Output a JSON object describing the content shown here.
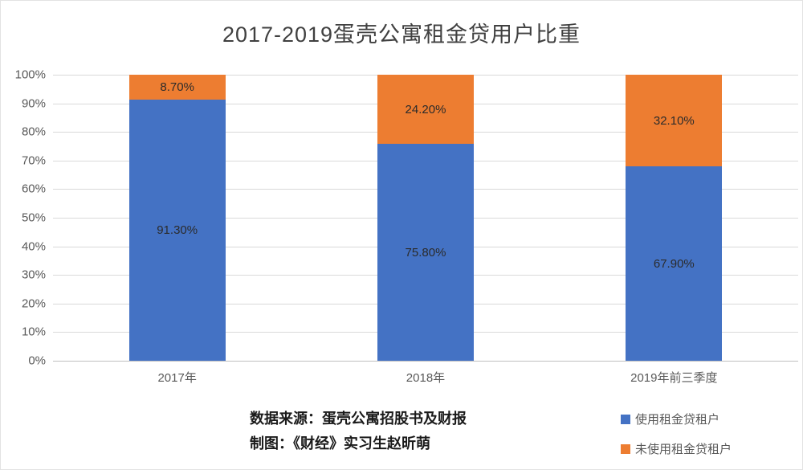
{
  "title": "2017-2019蛋壳公寓租金贷用户比重",
  "chart_data": {
    "type": "bar",
    "stacked": true,
    "title": "2017-2019蛋壳公寓租金贷用户比重",
    "categories": [
      "2017年",
      "2018年",
      "2019年前三季度"
    ],
    "series": [
      {
        "name": "使用租金贷租户",
        "color": "#4472c4",
        "values": [
          91.3,
          75.8,
          67.9
        ],
        "labels": [
          "91.30%",
          "75.80%",
          "67.90%"
        ]
      },
      {
        "name": "未使用租金贷租户",
        "color": "#ed7d31",
        "values": [
          8.7,
          24.2,
          32.1
        ],
        "labels": [
          "8.70%",
          "24.20%",
          "32.10%"
        ]
      }
    ],
    "y_ticks": [
      "100%",
      "90%",
      "80%",
      "70%",
      "60%",
      "50%",
      "40%",
      "30%",
      "20%",
      "10%",
      "0%"
    ],
    "ylim": [
      0,
      100
    ],
    "grid": true,
    "legend_position": "bottom-right",
    "xlabel": "",
    "ylabel": ""
  },
  "footer": {
    "source_line1": "数据来源：蛋壳公寓招股书及财报",
    "source_line2": "制图：《财经》实习生赵昕萌"
  }
}
